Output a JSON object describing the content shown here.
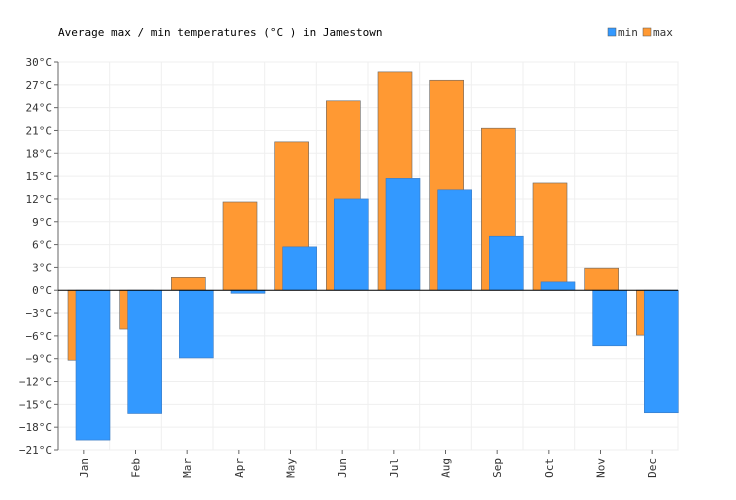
{
  "chart_data": {
    "type": "bar",
    "title": "Average max / min temperatures (°C ) in Jamestown",
    "xlabel": "",
    "ylabel": "",
    "categories": [
      "Jan",
      "Feb",
      "Mar",
      "Apr",
      "May",
      "Jun",
      "Jul",
      "Aug",
      "Sep",
      "Oct",
      "Nov",
      "Dec"
    ],
    "series": [
      {
        "name": "max",
        "color": "#ff9933",
        "values": [
          -9.2,
          -5.1,
          1.7,
          11.6,
          19.5,
          24.9,
          28.7,
          27.6,
          21.3,
          14.1,
          2.9,
          -5.9
        ]
      },
      {
        "name": "min",
        "color": "#3399ff",
        "values": [
          -19.7,
          -16.2,
          -8.9,
          -0.4,
          5.7,
          12.0,
          14.7,
          13.2,
          7.1,
          1.1,
          -7.3,
          -16.1
        ]
      }
    ],
    "ylim": [
      -21,
      30
    ],
    "yticks": [
      -21,
      -18,
      -15,
      -12,
      -9,
      -6,
      -3,
      0,
      3,
      6,
      9,
      12,
      15,
      18,
      21,
      24,
      27,
      30
    ],
    "ytick_labels": [
      "−21°C",
      "−18°C",
      "−15°C",
      "−12°C",
      "−9°C",
      "−6°C",
      "−3°C",
      "0°C",
      "3°C",
      "6°C",
      "9°C",
      "12°C",
      "15°C",
      "18°C",
      "21°C",
      "24°C",
      "27°C",
      "30°C"
    ],
    "grid": true,
    "legend_position": "top-right"
  }
}
